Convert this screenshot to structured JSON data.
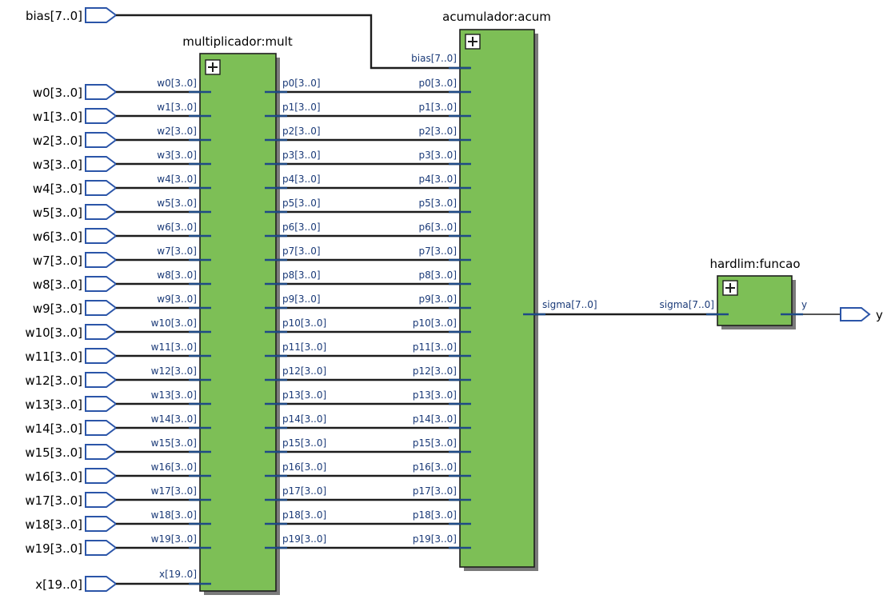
{
  "inputs": {
    "bias": "bias[7..0]",
    "weights": [
      "w0[3..0]",
      "w1[3..0]",
      "w2[3..0]",
      "w3[3..0]",
      "w4[3..0]",
      "w5[3..0]",
      "w6[3..0]",
      "w7[3..0]",
      "w8[3..0]",
      "w9[3..0]",
      "w10[3..0]",
      "w11[3..0]",
      "w12[3..0]",
      "w13[3..0]",
      "w14[3..0]",
      "w15[3..0]",
      "w16[3..0]",
      "w17[3..0]",
      "w18[3..0]",
      "w19[3..0]"
    ],
    "x": "x[19..0]"
  },
  "outputs": {
    "y": "y"
  },
  "blocks": {
    "mult": {
      "title": "multiplicador:mult",
      "in_pins": [
        "w0[3..0]",
        "w1[3..0]",
        "w2[3..0]",
        "w3[3..0]",
        "w4[3..0]",
        "w5[3..0]",
        "w6[3..0]",
        "w7[3..0]",
        "w8[3..0]",
        "w9[3..0]",
        "w10[3..0]",
        "w11[3..0]",
        "w12[3..0]",
        "w13[3..0]",
        "w14[3..0]",
        "w15[3..0]",
        "w16[3..0]",
        "w17[3..0]",
        "w18[3..0]",
        "w19[3..0]",
        "x[19..0]"
      ],
      "out_pins": [
        "p0[3..0]",
        "p1[3..0]",
        "p2[3..0]",
        "p3[3..0]",
        "p4[3..0]",
        "p5[3..0]",
        "p6[3..0]",
        "p7[3..0]",
        "p8[3..0]",
        "p9[3..0]",
        "p10[3..0]",
        "p11[3..0]",
        "p12[3..0]",
        "p13[3..0]",
        "p14[3..0]",
        "p15[3..0]",
        "p16[3..0]",
        "p17[3..0]",
        "p18[3..0]",
        "p19[3..0]"
      ]
    },
    "acum": {
      "title": "acumulador:acum",
      "in_pins": [
        "bias[7..0]",
        "p0[3..0]",
        "p1[3..0]",
        "p2[3..0]",
        "p3[3..0]",
        "p4[3..0]",
        "p5[3..0]",
        "p6[3..0]",
        "p7[3..0]",
        "p8[3..0]",
        "p9[3..0]",
        "p10[3..0]",
        "p11[3..0]",
        "p12[3..0]",
        "p13[3..0]",
        "p14[3..0]",
        "p15[3..0]",
        "p16[3..0]",
        "p17[3..0]",
        "p18[3..0]",
        "p19[3..0]"
      ],
      "out_pin": "sigma[7..0]"
    },
    "funcao": {
      "title": "hardlim:funcao",
      "in_pin": "sigma[7..0]",
      "out_pin": "y"
    }
  },
  "colors": {
    "block_fill": "#7dbf56",
    "port_outline": "#2b55a8",
    "pin_text": "#1a3a78",
    "wire": "#1c1c1c"
  }
}
